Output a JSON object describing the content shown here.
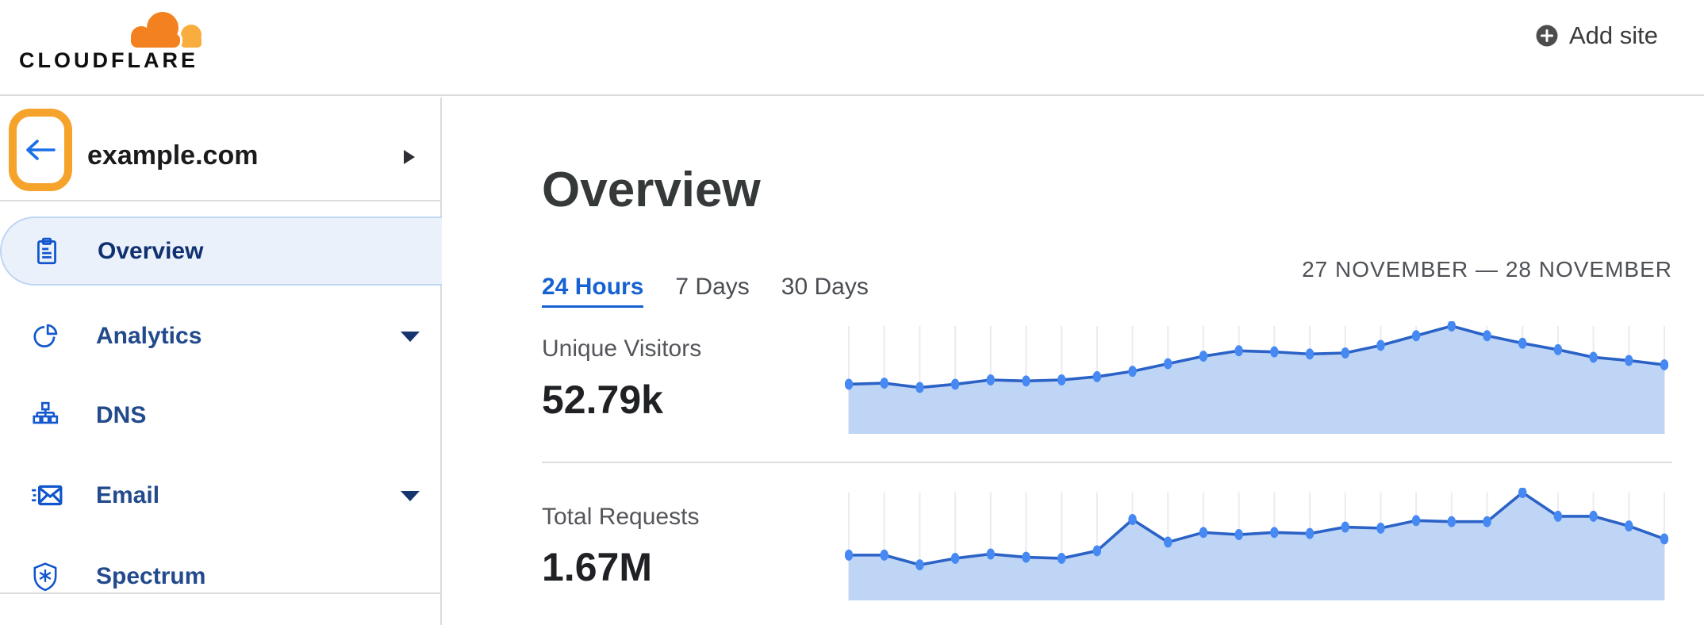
{
  "header": {
    "logo_text": "CLOUDFLARE",
    "add_site_label": "Add site"
  },
  "sidebar": {
    "site_name": "example.com",
    "items": [
      {
        "label": "Overview",
        "selected": true,
        "has_caret": false,
        "icon": "clipboard-icon"
      },
      {
        "label": "Analytics",
        "selected": false,
        "has_caret": true,
        "icon": "pie-chart-icon"
      },
      {
        "label": "DNS",
        "selected": false,
        "has_caret": false,
        "icon": "hierarchy-icon"
      },
      {
        "label": "Email",
        "selected": false,
        "has_caret": true,
        "icon": "envelope-icon"
      },
      {
        "label": "Spectrum",
        "selected": false,
        "has_caret": false,
        "icon": "shield-snowflake-icon"
      }
    ],
    "annotation": {
      "shape": "rounded-rectangle-highlight",
      "target": "back-arrow",
      "color": "#F6A32C"
    }
  },
  "main": {
    "title": "Overview",
    "time_tabs": [
      {
        "label": "24 Hours",
        "active": true
      },
      {
        "label": "7 Days",
        "active": false
      },
      {
        "label": "30 Days",
        "active": false
      }
    ],
    "date_range": "27 NOVEMBER — 28 NOVEMBER",
    "metrics": [
      {
        "label": "Unique Visitors",
        "value": "52.79k"
      },
      {
        "label": "Total Requests",
        "value": "1.67M"
      }
    ]
  },
  "colors": {
    "accent_blue": "#1662D2",
    "nav_icon_blue": "#1458CE",
    "nav_label_blue": "#224A8C",
    "selected_label_blue": "#10306F",
    "selected_bg": "#EAF1FB",
    "selected_border": "#BDD6F2",
    "highlight_orange": "#F6A32C",
    "logo_orange": "#F48120",
    "logo_light_orange": "#FAAD3F",
    "chart_line": "#2B62C6",
    "chart_dot": "#4689F2",
    "chart_area": "#BFD5F6",
    "chart_grid": "#EBEBF1",
    "divider_gray": "#DBDBDE"
  },
  "chart_data": [
    {
      "type": "area",
      "title": "Unique Visitors",
      "displayed_total": "52.79k",
      "x_range": "24 hours, 27 November — 28 November",
      "x_points": 24,
      "y_scale": "relative 0-1 (no axis labels shown in UI)",
      "grid": "vertical line per point",
      "legend": "none",
      "values": [
        0.46,
        0.47,
        0.43,
        0.46,
        0.5,
        0.49,
        0.5,
        0.53,
        0.58,
        0.65,
        0.72,
        0.77,
        0.76,
        0.74,
        0.75,
        0.82,
        0.91,
        1.0,
        0.91,
        0.84,
        0.78,
        0.71,
        0.68,
        0.64
      ]
    },
    {
      "type": "area",
      "title": "Total Requests",
      "displayed_total": "1.67M",
      "x_range": "24 hours, 27 November — 28 November",
      "x_points": 24,
      "y_scale": "relative 0-1 (no axis labels shown in UI)",
      "grid": "vertical line per point",
      "legend": "none",
      "values": [
        0.42,
        0.42,
        0.33,
        0.39,
        0.43,
        0.4,
        0.39,
        0.46,
        0.75,
        0.54,
        0.63,
        0.61,
        0.63,
        0.62,
        0.68,
        0.67,
        0.74,
        0.73,
        0.73,
        1.0,
        0.78,
        0.78,
        0.69,
        0.57
      ]
    }
  ]
}
